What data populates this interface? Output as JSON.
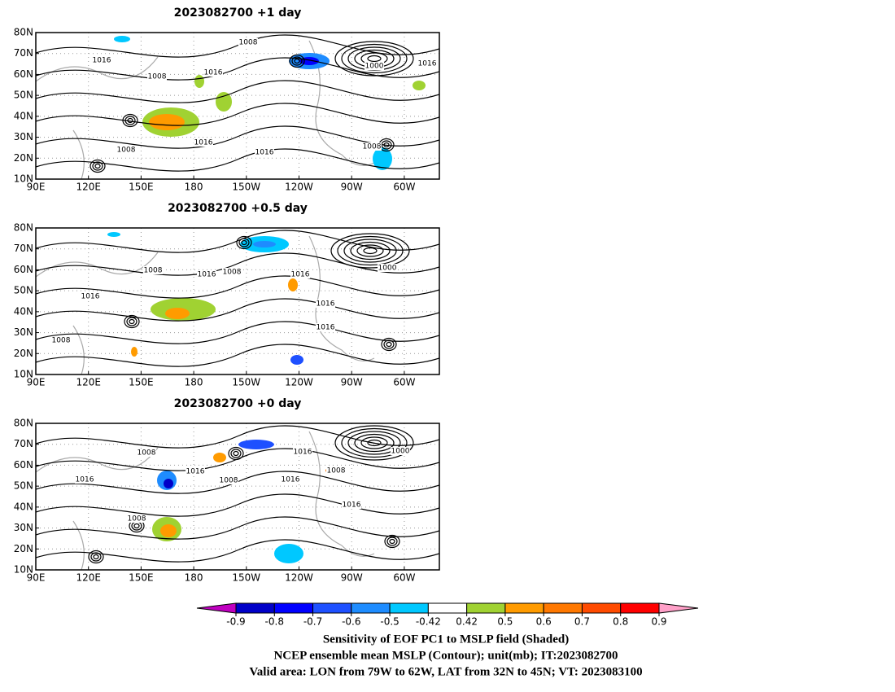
{
  "panels": [
    {
      "title": "2023082700  +1  day",
      "lat_labels": [
        "80N",
        "70N",
        "60N",
        "50N",
        "40N",
        "30N",
        "20N",
        "10N"
      ],
      "lon_labels": [
        "90E",
        "120E",
        "150E",
        "180",
        "150W",
        "120W",
        "90W",
        "60W"
      ],
      "contour_labels": [
        "1008",
        "1016",
        "1008",
        "1016",
        "1000",
        "1016",
        "1016",
        "1016",
        "1008",
        "1008"
      ]
    },
    {
      "title": "2023082700  +0.5  day",
      "lat_labels": [
        "80N",
        "70N",
        "60N",
        "50N",
        "40N",
        "30N",
        "20N",
        "10N"
      ],
      "lon_labels": [
        "90E",
        "120E",
        "150E",
        "180",
        "150W",
        "120W",
        "90W",
        "60W"
      ],
      "contour_labels": [
        "1008",
        "1016",
        "1008",
        "1016",
        "1000",
        "1016",
        "1016",
        "1016",
        "1008"
      ]
    },
    {
      "title": "2023082700  +0  day",
      "lat_labels": [
        "80N",
        "70N",
        "60N",
        "50N",
        "40N",
        "30N",
        "20N",
        "10N"
      ],
      "lon_labels": [
        "90E",
        "120E",
        "150E",
        "180",
        "150W",
        "120W",
        "90W",
        "60W"
      ],
      "contour_labels": [
        "1008",
        "1016",
        "1000",
        "1016",
        "1008",
        "1016",
        "1008",
        "1016",
        "1016",
        "1008"
      ]
    }
  ],
  "colorbar": {
    "labels": [
      "-0.9",
      "-0.8",
      "-0.7",
      "-0.6",
      "-0.5",
      "-0.42",
      "0.42",
      "0.5",
      "0.6",
      "0.7",
      "0.8",
      "0.9"
    ],
    "colors": [
      "#c000c0",
      "#0000c8",
      "#0000ff",
      "#1e50ff",
      "#1e8cff",
      "#00c8ff",
      "#ffffff",
      "#a0d232",
      "#ff9b00",
      "#ff7800",
      "#ff4b00",
      "#ff0000",
      "#ffa0c8"
    ]
  },
  "caption": [
    "Sensitivity of EOF PC1 to MSLP field (Shaded)",
    "NCEP ensemble mean MSLP (Contour); unit(mb); IT:2023082700",
    "Valid area: LON from 79W to 62W, LAT from 32N to 45N; VT: 2023083100"
  ]
}
